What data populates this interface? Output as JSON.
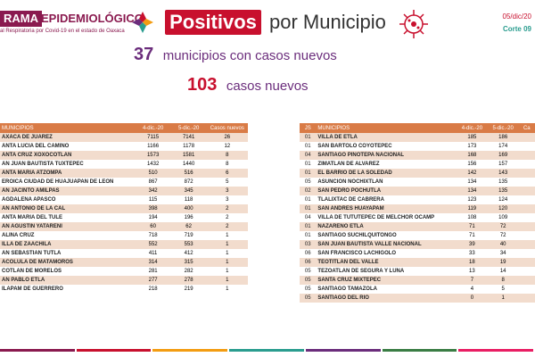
{
  "header": {
    "brand_tag": "RAMA",
    "brand_rest": "EPIDEMIOLÓGICO",
    "brand_sub": "al Respiratoria por Covid-19 en el estado de Oaxaca",
    "title_box": "Positivos",
    "title_rest": "por Municipio",
    "date": "05/dic/20",
    "corte": "Corte 09"
  },
  "summary": {
    "municipios_count": "37",
    "municipios_text": "municipios con casos nuevos",
    "casos_count": "103",
    "casos_text": "casos nuevos"
  },
  "left_table": {
    "headers": [
      "MUNICIPIOS",
      "4-dic.-20",
      "5-dic.-20",
      "Casos nuevos"
    ],
    "rows": [
      [
        "AXACA DE JUAREZ",
        "7115",
        "7141",
        "26"
      ],
      [
        "ANTA LUCIA DEL CAMINO",
        "1166",
        "1178",
        "12"
      ],
      [
        "ANTA CRUZ XOXOCOTLAN",
        "1573",
        "1581",
        "8"
      ],
      [
        "AN JUAN BAUTISTA TUXTEPEC",
        "1432",
        "1440",
        "8"
      ],
      [
        "ANTA MARIA ATZOMPA",
        "510",
        "516",
        "6"
      ],
      [
        "EROICA CIUDAD DE HUAJUAPAN DE LEON",
        "867",
        "872",
        "5"
      ],
      [
        "AN JACINTO AMILPAS",
        "342",
        "345",
        "3"
      ],
      [
        "AGDALENA APASCO",
        "115",
        "118",
        "3"
      ],
      [
        "AN ANTONIO DE LA CAL",
        "398",
        "400",
        "2"
      ],
      [
        "ANTA MARIA DEL TULE",
        "194",
        "196",
        "2"
      ],
      [
        "AN AGUSTIN YATARENI",
        "60",
        "62",
        "2"
      ],
      [
        "ALINA CRUZ",
        "718",
        "719",
        "1"
      ],
      [
        "ILLA DE ZAACHILA",
        "552",
        "553",
        "1"
      ],
      [
        "AN SEBASTIAN TUTLA",
        "411",
        "412",
        "1"
      ],
      [
        "ACOLULA DE MATAMOROS",
        "314",
        "315",
        "1"
      ],
      [
        "COTLAN DE MORELOS",
        "281",
        "282",
        "1"
      ],
      [
        "AN PABLO ETLA",
        "277",
        "278",
        "1"
      ],
      [
        "ILAPAM DE GUERRERO",
        "218",
        "219",
        "1"
      ]
    ]
  },
  "right_table": {
    "headers": [
      "JS",
      "MUNICIPIOS",
      "4-dic.-20",
      "5-dic.-20",
      "Ca"
    ],
    "rows": [
      [
        "01",
        "VILLA DE ETLA",
        "185",
        "186",
        ""
      ],
      [
        "01",
        "SAN BARTOLO COYOTEPEC",
        "173",
        "174",
        ""
      ],
      [
        "04",
        "SANTIAGO PINOTEPA NACIONAL",
        "168",
        "169",
        ""
      ],
      [
        "01",
        "ZIMATLAN DE ALVAREZ",
        "156",
        "157",
        ""
      ],
      [
        "01",
        "EL BARRIO DE LA SOLEDAD",
        "142",
        "143",
        ""
      ],
      [
        "05",
        "ASUNCION NOCHIXTLAN",
        "134",
        "135",
        ""
      ],
      [
        "02",
        "SAN PEDRO POCHUTLA",
        "134",
        "135",
        ""
      ],
      [
        "01",
        "TLALIXTAC DE CABRERA",
        "123",
        "124",
        ""
      ],
      [
        "01",
        "SAN ANDRES HUAYAPAM",
        "119",
        "120",
        ""
      ],
      [
        "04",
        "VILLA DE TUTUTEPEC DE MELCHOR OCAMP",
        "108",
        "109",
        ""
      ],
      [
        "01",
        "NAZARENO ETLA",
        "71",
        "72",
        ""
      ],
      [
        "01",
        "SANTIAGO SUCHILQUITONGO",
        "71",
        "72",
        ""
      ],
      [
        "03",
        "SAN JUAN BAUTISTA VALLE NACIONAL",
        "39",
        "40",
        ""
      ],
      [
        "06",
        "SAN FRANCISCO LACHIGOLO",
        "33",
        "34",
        ""
      ],
      [
        "06",
        "TEOTITLAN DEL VALLE",
        "18",
        "19",
        ""
      ],
      [
        "05",
        "TEZOATLAN DE SEGURA Y LUNA",
        "13",
        "14",
        ""
      ],
      [
        "05",
        "SANTA CRUZ MIXTEPEC",
        "7",
        "8",
        ""
      ],
      [
        "05",
        "SANTIAGO TAMAZOLA",
        "4",
        "5",
        ""
      ],
      [
        "05",
        "SANTIAGO DEL RIO",
        "0",
        "1",
        ""
      ]
    ]
  },
  "colors": {
    "brand": "#8a1a4f",
    "title_red": "#c8102e",
    "purple": "#6b2d7c",
    "table_header": "#d97b46",
    "table_stripe": "#f2dccd",
    "footer_colors": [
      "#8a1a4f",
      "#c8102e",
      "#f39c12",
      "#2a9d8f",
      "#6b2d7c",
      "#3a7d44",
      "#e91e63"
    ]
  },
  "icons": [
    "oaxaca-logo-icon",
    "virus-icon"
  ]
}
